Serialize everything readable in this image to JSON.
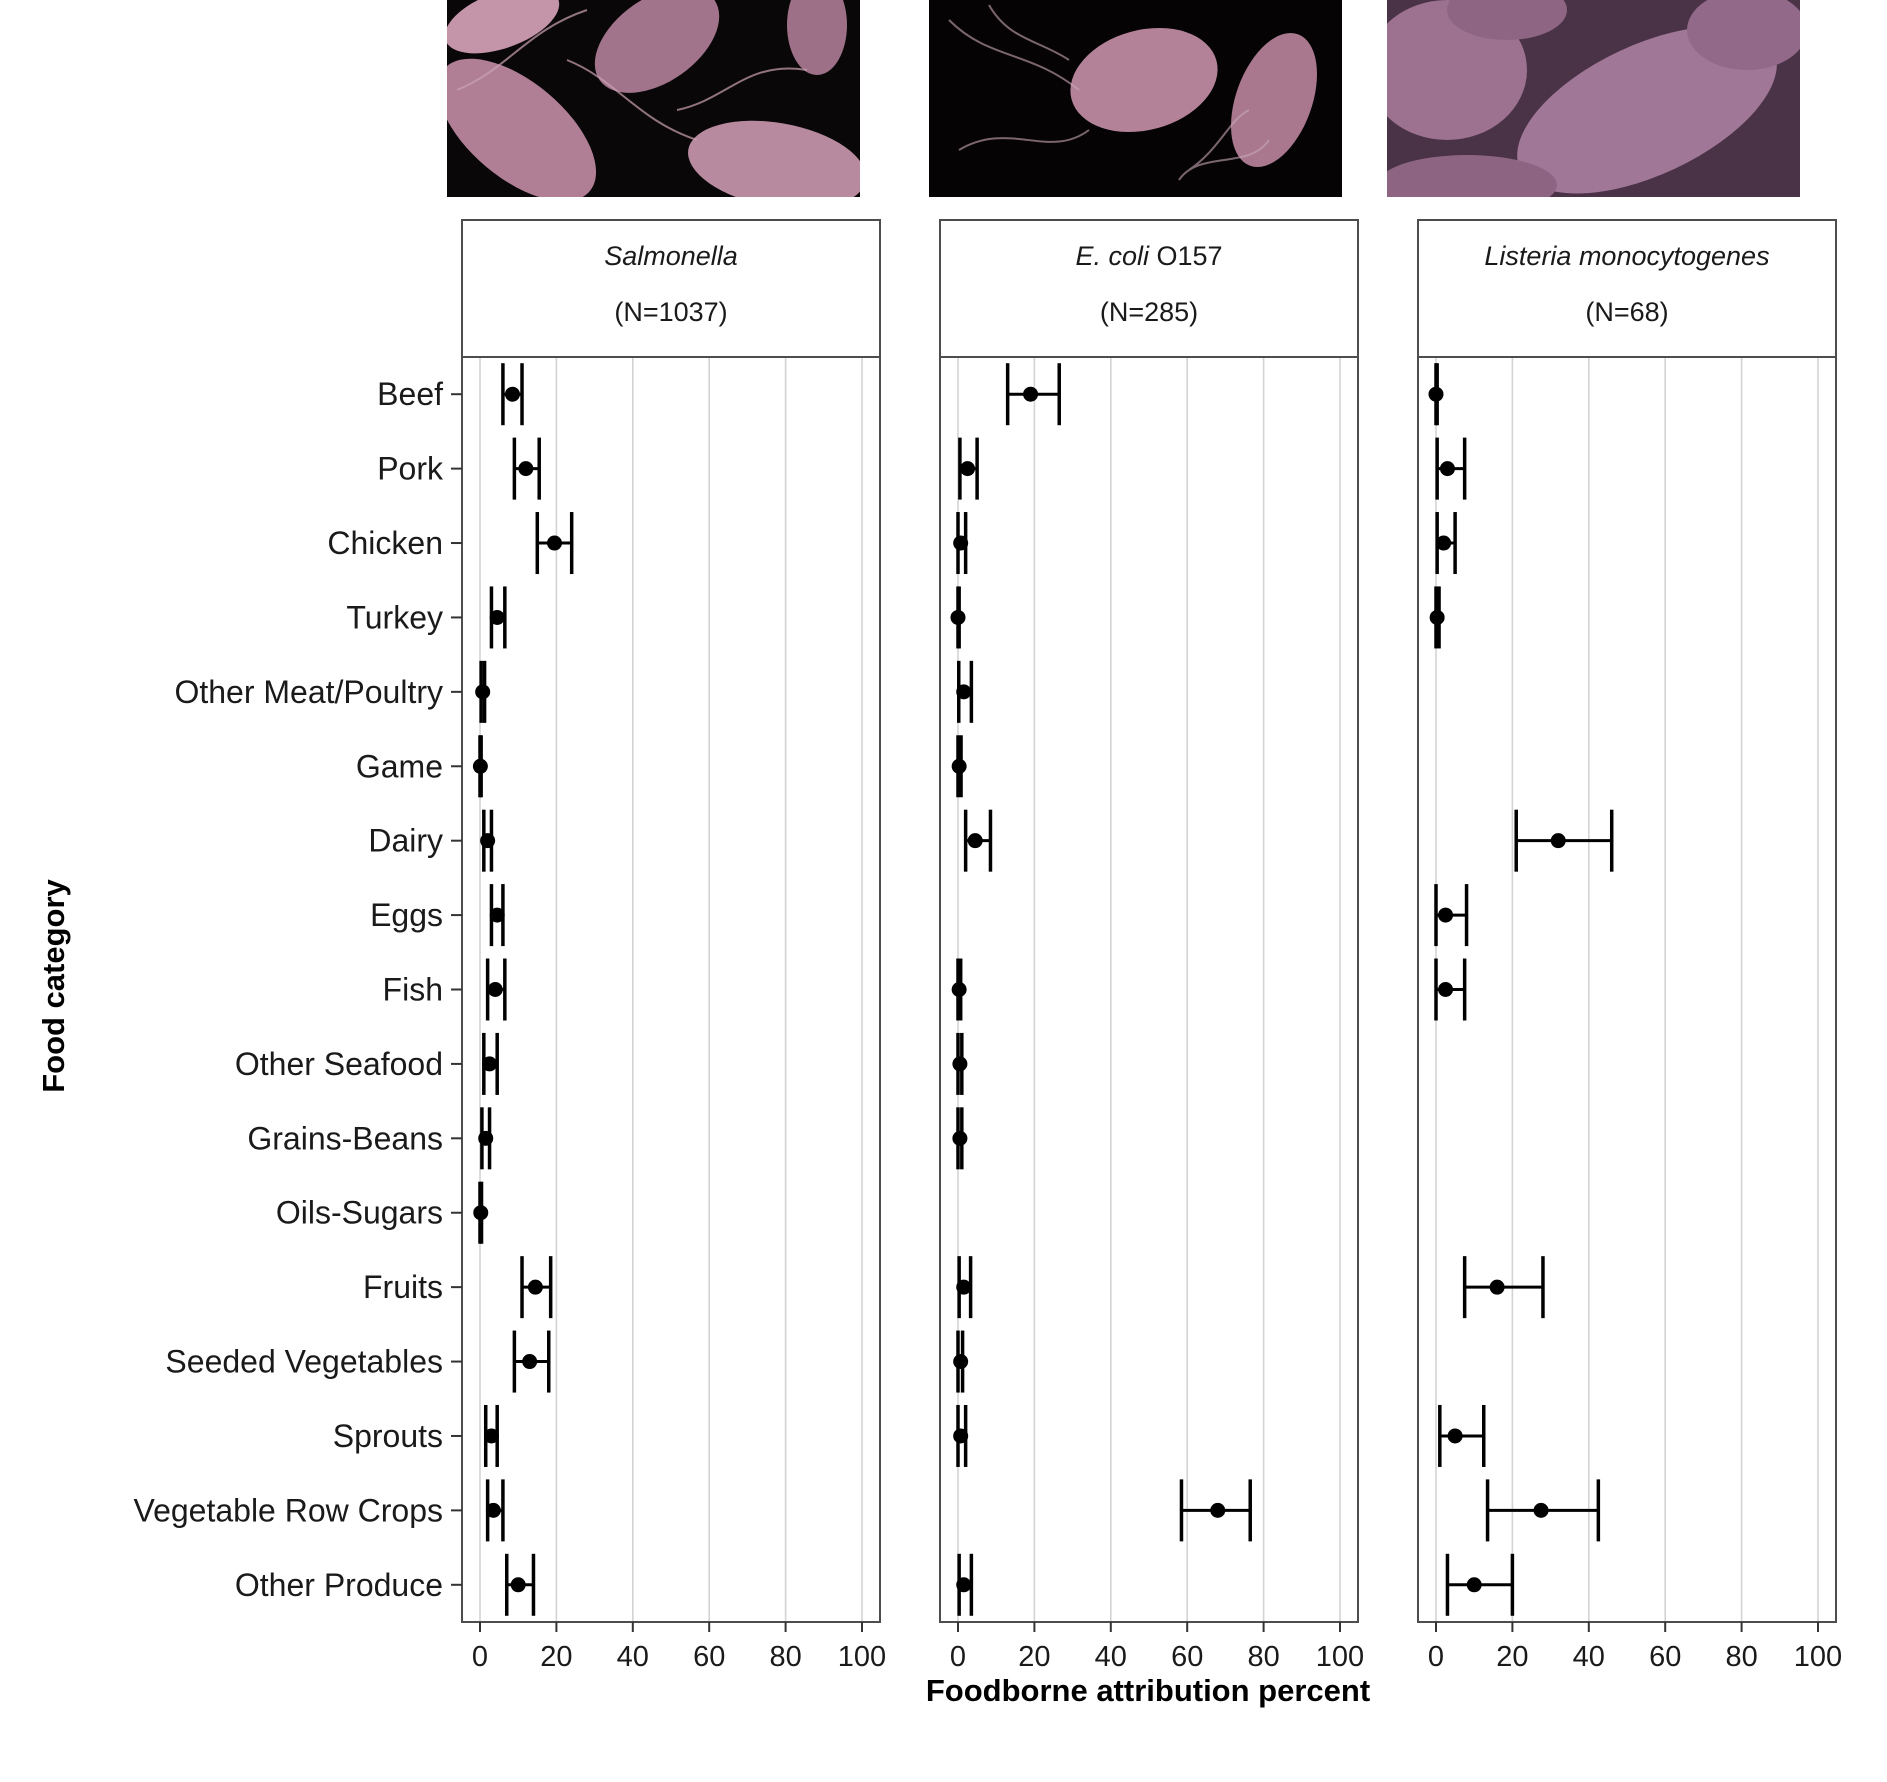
{
  "chart_data": {
    "type": "scatter",
    "subtype": "dot-and-whisker (point estimate with interval), faceted",
    "xlabel": "Foodborne attribution percent",
    "ylabel": "Food category",
    "xlim": [
      0,
      100
    ],
    "xticks": [
      "0",
      "20",
      "40",
      "60",
      "80",
      "100"
    ],
    "grid": "vertical major and minor lines",
    "categories": [
      "Beef",
      "Pork",
      "Chicken",
      "Turkey",
      "Other Meat/Poultry",
      "Game",
      "Dairy",
      "Eggs",
      "Fish",
      "Other Seafood",
      "Grains-Beans",
      "Oils-Sugars",
      "Fruits",
      "Seeded Vegetables",
      "Sprouts",
      "Vegetable Row Crops",
      "Other Produce"
    ],
    "panels": [
      {
        "name": "Salmonella",
        "name_italic": "Salmonella",
        "name_suffix": "",
        "n_label": "(N=1037)",
        "points": [
          {
            "category": "Beef",
            "estimate": 8.5,
            "lower": 6,
            "upper": 11
          },
          {
            "category": "Pork",
            "estimate": 12,
            "lower": 9,
            "upper": 15.5
          },
          {
            "category": "Chicken",
            "estimate": 19.5,
            "lower": 15,
            "upper": 24
          },
          {
            "category": "Turkey",
            "estimate": 4.5,
            "lower": 3,
            "upper": 6.5
          },
          {
            "category": "Other Meat/Poultry",
            "estimate": 0.7,
            "lower": 0.3,
            "upper": 1.2
          },
          {
            "category": "Game",
            "estimate": 0.1,
            "lower": 0,
            "upper": 0.3
          },
          {
            "category": "Dairy",
            "estimate": 2,
            "lower": 1,
            "upper": 3
          },
          {
            "category": "Eggs",
            "estimate": 4.5,
            "lower": 3,
            "upper": 6
          },
          {
            "category": "Fish",
            "estimate": 4,
            "lower": 2,
            "upper": 6.5
          },
          {
            "category": "Other Seafood",
            "estimate": 2.5,
            "lower": 1,
            "upper": 4.5
          },
          {
            "category": "Grains-Beans",
            "estimate": 1.5,
            "lower": 0.5,
            "upper": 2.5
          },
          {
            "category": "Oils-Sugars",
            "estimate": 0.2,
            "lower": 0,
            "upper": 0.4
          },
          {
            "category": "Fruits",
            "estimate": 14.5,
            "lower": 11,
            "upper": 18.5
          },
          {
            "category": "Seeded Vegetables",
            "estimate": 13,
            "lower": 9,
            "upper": 18
          },
          {
            "category": "Sprouts",
            "estimate": 3,
            "lower": 1.5,
            "upper": 4.5
          },
          {
            "category": "Vegetable Row Crops",
            "estimate": 3.5,
            "lower": 2,
            "upper": 6
          },
          {
            "category": "Other Produce",
            "estimate": 10,
            "lower": 7,
            "upper": 14
          }
        ]
      },
      {
        "name": "E. coli O157",
        "name_italic": "E. coli",
        "name_suffix": " O157",
        "n_label": "(N=285)",
        "points": [
          {
            "category": "Beef",
            "estimate": 19,
            "lower": 13,
            "upper": 26.5
          },
          {
            "category": "Pork",
            "estimate": 2.5,
            "lower": 0.5,
            "upper": 5
          },
          {
            "category": "Chicken",
            "estimate": 0.7,
            "lower": 0,
            "upper": 2
          },
          {
            "category": "Turkey",
            "estimate": 0,
            "lower": 0,
            "upper": 0.3
          },
          {
            "category": "Other Meat/Poultry",
            "estimate": 1.5,
            "lower": 0.2,
            "upper": 3.5
          },
          {
            "category": "Game",
            "estimate": 0.3,
            "lower": 0,
            "upper": 0.8
          },
          {
            "category": "Dairy",
            "estimate": 4.5,
            "lower": 2,
            "upper": 8.5
          },
          {
            "category": "Fish",
            "estimate": 0.3,
            "lower": 0,
            "upper": 0.7
          },
          {
            "category": "Other Seafood",
            "estimate": 0.5,
            "lower": 0,
            "upper": 1
          },
          {
            "category": "Grains-Beans",
            "estimate": 0.5,
            "lower": 0,
            "upper": 1
          },
          {
            "category": "Fruits",
            "estimate": 1.5,
            "lower": 0.3,
            "upper": 3.3
          },
          {
            "category": "Seeded Vegetables",
            "estimate": 0.7,
            "lower": 0,
            "upper": 1.2
          },
          {
            "category": "Sprouts",
            "estimate": 0.7,
            "lower": 0,
            "upper": 2
          },
          {
            "category": "Vegetable Row Crops",
            "estimate": 68,
            "lower": 58.5,
            "upper": 76.5
          },
          {
            "category": "Other Produce",
            "estimate": 1.5,
            "lower": 0.3,
            "upper": 3.5
          }
        ]
      },
      {
        "name": "Listeria monocytogenes",
        "name_italic": "Listeria monocytogenes",
        "name_suffix": "",
        "n_label": "(N=68)",
        "points": [
          {
            "category": "Beef",
            "estimate": 0,
            "lower": 0,
            "upper": 0.3
          },
          {
            "category": "Pork",
            "estimate": 3,
            "lower": 0.3,
            "upper": 7.5
          },
          {
            "category": "Chicken",
            "estimate": 2,
            "lower": 0.3,
            "upper": 5
          },
          {
            "category": "Turkey",
            "estimate": 0.3,
            "lower": 0,
            "upper": 0.8
          },
          {
            "category": "Dairy",
            "estimate": 32,
            "lower": 21,
            "upper": 46
          },
          {
            "category": "Eggs",
            "estimate": 2.5,
            "lower": 0,
            "upper": 8
          },
          {
            "category": "Fish",
            "estimate": 2.5,
            "lower": 0,
            "upper": 7.5
          },
          {
            "category": "Fruits",
            "estimate": 16,
            "lower": 7.5,
            "upper": 28
          },
          {
            "category": "Sprouts",
            "estimate": 5,
            "lower": 1,
            "upper": 12.5
          },
          {
            "category": "Vegetable Row Crops",
            "estimate": 27.5,
            "lower": 13.5,
            "upper": 42.5
          },
          {
            "category": "Other Produce",
            "estimate": 10,
            "lower": 3,
            "upper": 20
          }
        ]
      }
    ]
  },
  "images": [
    {
      "name": "salmonella-micrograph",
      "color": "#b07f96"
    },
    {
      "name": "ecoli-micrograph",
      "color": "#b38298"
    },
    {
      "name": "listeria-micrograph",
      "color": "#9c7290"
    }
  ],
  "colors": {
    "point": "#000000",
    "grid": "#d3d3d3",
    "panel_border": "#4d4d4d",
    "text": "#1a1a1a"
  }
}
